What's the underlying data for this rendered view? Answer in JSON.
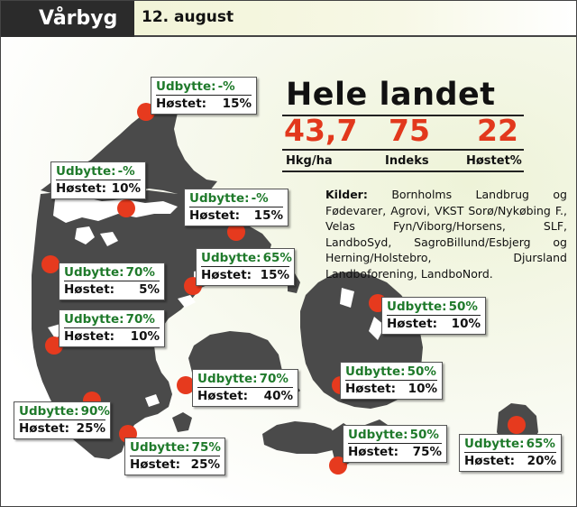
{
  "header": {
    "title": "Vårbyg",
    "date": "12. august"
  },
  "national": {
    "title": "Hele landet",
    "stats": [
      {
        "value": "43,7",
        "caption": "Hkg/ha"
      },
      {
        "value": "75",
        "caption": "Indeks"
      },
      {
        "value": "22",
        "caption": "Høstet%"
      }
    ]
  },
  "sources": {
    "label": "Kilder:",
    "text": "Bornholms Landbrug og Fødevarer, Agrovi, VKST Sorø/Nykøbing F., Velas Fyn/Viborg/Horsens, SLF, LandboSyd, SagroBillund/Esbjerg og Herning/Holstebro, Djursland Landboforening, LandboNord."
  },
  "regions": [
    {
      "yield_label": "Udbytte:",
      "yield": "-%",
      "harvest_label": "Høstet:",
      "harvest": "15%"
    },
    {
      "yield_label": "Udbytte:",
      "yield": "-%",
      "harvest_label": "Høstet:",
      "harvest": "10%"
    },
    {
      "yield_label": "Udbytte:",
      "yield": "-%",
      "harvest_label": "Høstet:",
      "harvest": "15%"
    },
    {
      "yield_label": "Udbytte:",
      "yield": "65%",
      "harvest_label": "Høstet:",
      "harvest": "15%"
    },
    {
      "yield_label": "Udbytte:",
      "yield": "70%",
      "harvest_label": "Høstet:",
      "harvest": "5%"
    },
    {
      "yield_label": "Udbytte:",
      "yield": "70%",
      "harvest_label": "Høstet:",
      "harvest": "10%"
    },
    {
      "yield_label": "Udbytte:",
      "yield": "50%",
      "harvest_label": "Høstet:",
      "harvest": "10%"
    },
    {
      "yield_label": "Udbytte:",
      "yield": "70%",
      "harvest_label": "Høstet:",
      "harvest": "40%"
    },
    {
      "yield_label": "Udbytte:",
      "yield": "50%",
      "harvest_label": "Høstet:",
      "harvest": "10%"
    },
    {
      "yield_label": "Udbytte:",
      "yield": "90%",
      "harvest_label": "Høstet:",
      "harvest": "25%"
    },
    {
      "yield_label": "Udbytte:",
      "yield": "75%",
      "harvest_label": "Høstet:",
      "harvest": "25%"
    },
    {
      "yield_label": "Udbytte:",
      "yield": "50%",
      "harvest_label": "Høstet:",
      "harvest": "75%"
    },
    {
      "yield_label": "Udbytte:",
      "yield": "65%",
      "harvest_label": "Høstet:",
      "harvest": "20%"
    }
  ],
  "colors": {
    "map_fill": "#4a4a4a",
    "marker": "#e63a1e",
    "yield_text": "#1f7a2b",
    "stat_value": "#e2381c",
    "header_bg": "#2b2b2b"
  }
}
